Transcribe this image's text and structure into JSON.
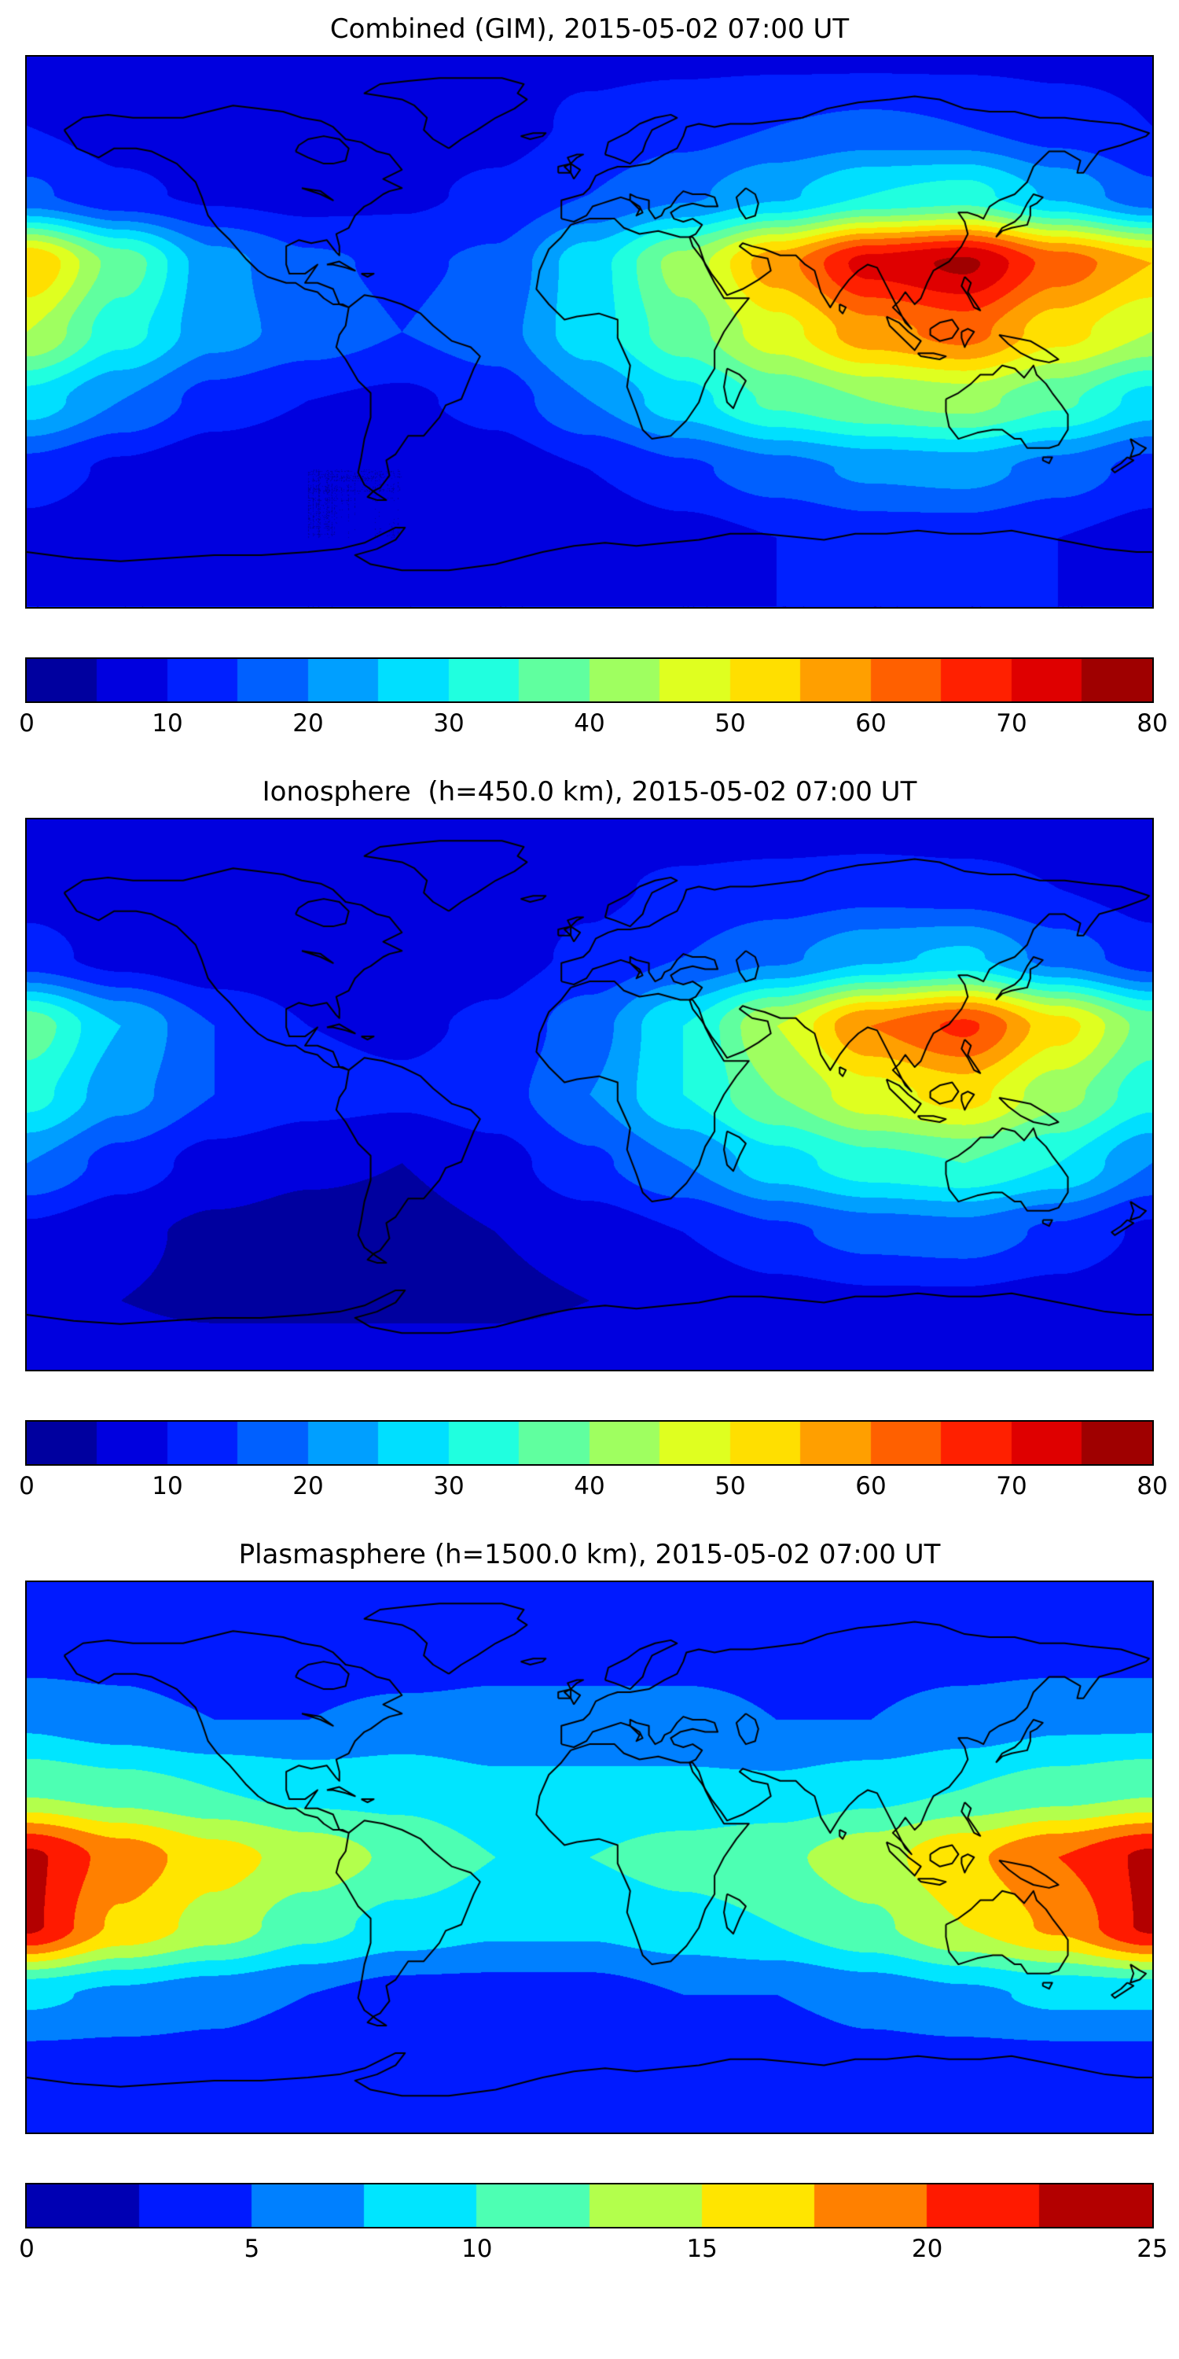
{
  "figure": {
    "background_color": "#ffffff",
    "text_color": "#000000",
    "coastline_color": "#000000"
  },
  "chart_data": [
    {
      "type": "heatmap",
      "subtype": "filled_contour_world_map",
      "title": "Combined (GIM), 2015-05-02 07:00 UT",
      "colormap": "jet",
      "projection": "equirectangular",
      "lon_range": [
        -180,
        180
      ],
      "lat_range": [
        -90,
        90
      ],
      "vmin": 0,
      "vmax": 80,
      "levels": 16,
      "colorbar_ticks": [
        0,
        10,
        20,
        30,
        40,
        50,
        60,
        70,
        80
      ],
      "colorbar_tick_labels": [
        "0",
        "10",
        "20",
        "30",
        "40",
        "50",
        "60",
        "70",
        "80"
      ],
      "grid_lon": [
        -180,
        -150,
        -120,
        -90,
        -60,
        -30,
        0,
        30,
        60,
        90,
        120,
        150,
        180
      ],
      "grid_lat": [
        90,
        67.5,
        45,
        22.5,
        0,
        -22.5,
        -45,
        -67.5,
        -90
      ],
      "values": [
        [
          9,
          9,
          9,
          9,
          9,
          9,
          9,
          9,
          9,
          9,
          9,
          9,
          9
        ],
        [
          10,
          8,
          7,
          6,
          7,
          8,
          11,
          13,
          15,
          16,
          15,
          12,
          10
        ],
        [
          16,
          11,
          9,
          8,
          9,
          11,
          15,
          19,
          24,
          30,
          32,
          24,
          16
        ],
        [
          55,
          38,
          22,
          16,
          14,
          16,
          28,
          42,
          58,
          72,
          76,
          63,
          55
        ],
        [
          45,
          32,
          22,
          18,
          15,
          18,
          28,
          38,
          48,
          58,
          62,
          52,
          45
        ],
        [
          28,
          20,
          13,
          10,
          9,
          12,
          20,
          28,
          36,
          40,
          42,
          36,
          28
        ],
        [
          13,
          9,
          6,
          5,
          5,
          7,
          10,
          14,
          18,
          21,
          22,
          18,
          13
        ],
        [
          8,
          6,
          5,
          5,
          5,
          5,
          6,
          8,
          10,
          12,
          12,
          10,
          8
        ],
        [
          10,
          10,
          10,
          10,
          10,
          10,
          10,
          10,
          10,
          10,
          10,
          10,
          10
        ]
      ]
    },
    {
      "type": "heatmap",
      "subtype": "filled_contour_world_map",
      "title": "Ionosphere  (h=450.0 km), 2015-05-02 07:00 UT",
      "colormap": "jet",
      "projection": "equirectangular",
      "lon_range": [
        -180,
        180
      ],
      "lat_range": [
        -90,
        90
      ],
      "vmin": 0,
      "vmax": 80,
      "levels": 16,
      "colorbar_ticks": [
        0,
        10,
        20,
        30,
        40,
        50,
        60,
        70,
        80
      ],
      "colorbar_tick_labels": [
        "0",
        "10",
        "20",
        "30",
        "40",
        "50",
        "60",
        "70",
        "80"
      ],
      "grid_lon": [
        -180,
        -150,
        -120,
        -90,
        -60,
        -30,
        0,
        30,
        60,
        90,
        120,
        150,
        180
      ],
      "grid_lat": [
        90,
        67.5,
        45,
        22.5,
        0,
        -22.5,
        -45,
        -67.5,
        -90
      ],
      "values": [
        [
          7,
          7,
          7,
          7,
          7,
          7,
          7,
          7,
          7,
          7,
          7,
          7,
          7
        ],
        [
          8,
          7,
          6,
          5,
          6,
          7,
          9,
          11,
          12,
          13,
          12,
          10,
          8
        ],
        [
          12,
          8,
          6,
          6,
          6,
          8,
          11,
          15,
          19,
          24,
          26,
          18,
          12
        ],
        [
          38,
          25,
          15,
          10,
          9,
          11,
          18,
          30,
          45,
          60,
          66,
          52,
          38
        ],
        [
          32,
          22,
          15,
          12,
          11,
          13,
          20,
          30,
          40,
          48,
          52,
          42,
          32
        ],
        [
          20,
          13,
          8,
          6,
          5,
          8,
          14,
          20,
          28,
          33,
          35,
          30,
          20
        ],
        [
          9,
          6,
          4,
          3,
          3,
          5,
          7,
          10,
          14,
          17,
          18,
          14,
          9
        ],
        [
          6,
          5,
          4,
          4,
          4,
          4,
          5,
          6,
          8,
          9,
          9,
          8,
          6
        ],
        [
          8,
          8,
          8,
          8,
          8,
          8,
          8,
          8,
          8,
          8,
          8,
          8,
          8
        ]
      ]
    },
    {
      "type": "heatmap",
      "subtype": "filled_contour_world_map",
      "title": "Plasmasphere (h=1500.0 km), 2015-05-02 07:00 UT",
      "colormap": "jet",
      "projection": "equirectangular",
      "lon_range": [
        -180,
        180
      ],
      "lat_range": [
        -90,
        90
      ],
      "vmin": 0,
      "vmax": 25,
      "levels": 10,
      "colorbar_ticks": [
        0,
        5,
        10,
        15,
        20,
        25
      ],
      "colorbar_tick_labels": [
        "0",
        "5",
        "10",
        "15",
        "20",
        "25"
      ],
      "grid_lon": [
        -180,
        -150,
        -120,
        -90,
        -60,
        -30,
        0,
        30,
        60,
        90,
        120,
        150,
        180
      ],
      "grid_lat": [
        90,
        67.5,
        45,
        22.5,
        0,
        -22.5,
        -45,
        -67.5,
        -90
      ],
      "values": [
        [
          3,
          3,
          3,
          3,
          3,
          3,
          3,
          3,
          3,
          3,
          3,
          3,
          3
        ],
        [
          4,
          4,
          3,
          3,
          3,
          4,
          4,
          4,
          4,
          4,
          4,
          4,
          4
        ],
        [
          7,
          6,
          5,
          5,
          6,
          6,
          6,
          6,
          5,
          5,
          6,
          7,
          7
        ],
        [
          12,
          11,
          10,
          9,
          9,
          8,
          8,
          8,
          8,
          9,
          10,
          11,
          12
        ],
        [
          23,
          19,
          16,
          14,
          12,
          10,
          10,
          11,
          12,
          14,
          17,
          20,
          23
        ],
        [
          23,
          17,
          14,
          11,
          9,
          8,
          8,
          9,
          10,
          12,
          15,
          18,
          23
        ],
        [
          8,
          7,
          6,
          5,
          4,
          4,
          4,
          5,
          5,
          6,
          7,
          8,
          8
        ],
        [
          4,
          4,
          4,
          3,
          3,
          3,
          3,
          3,
          3,
          4,
          4,
          4,
          4
        ],
        [
          3,
          3,
          3,
          3,
          3,
          3,
          3,
          3,
          3,
          3,
          3,
          3,
          3
        ]
      ]
    }
  ]
}
